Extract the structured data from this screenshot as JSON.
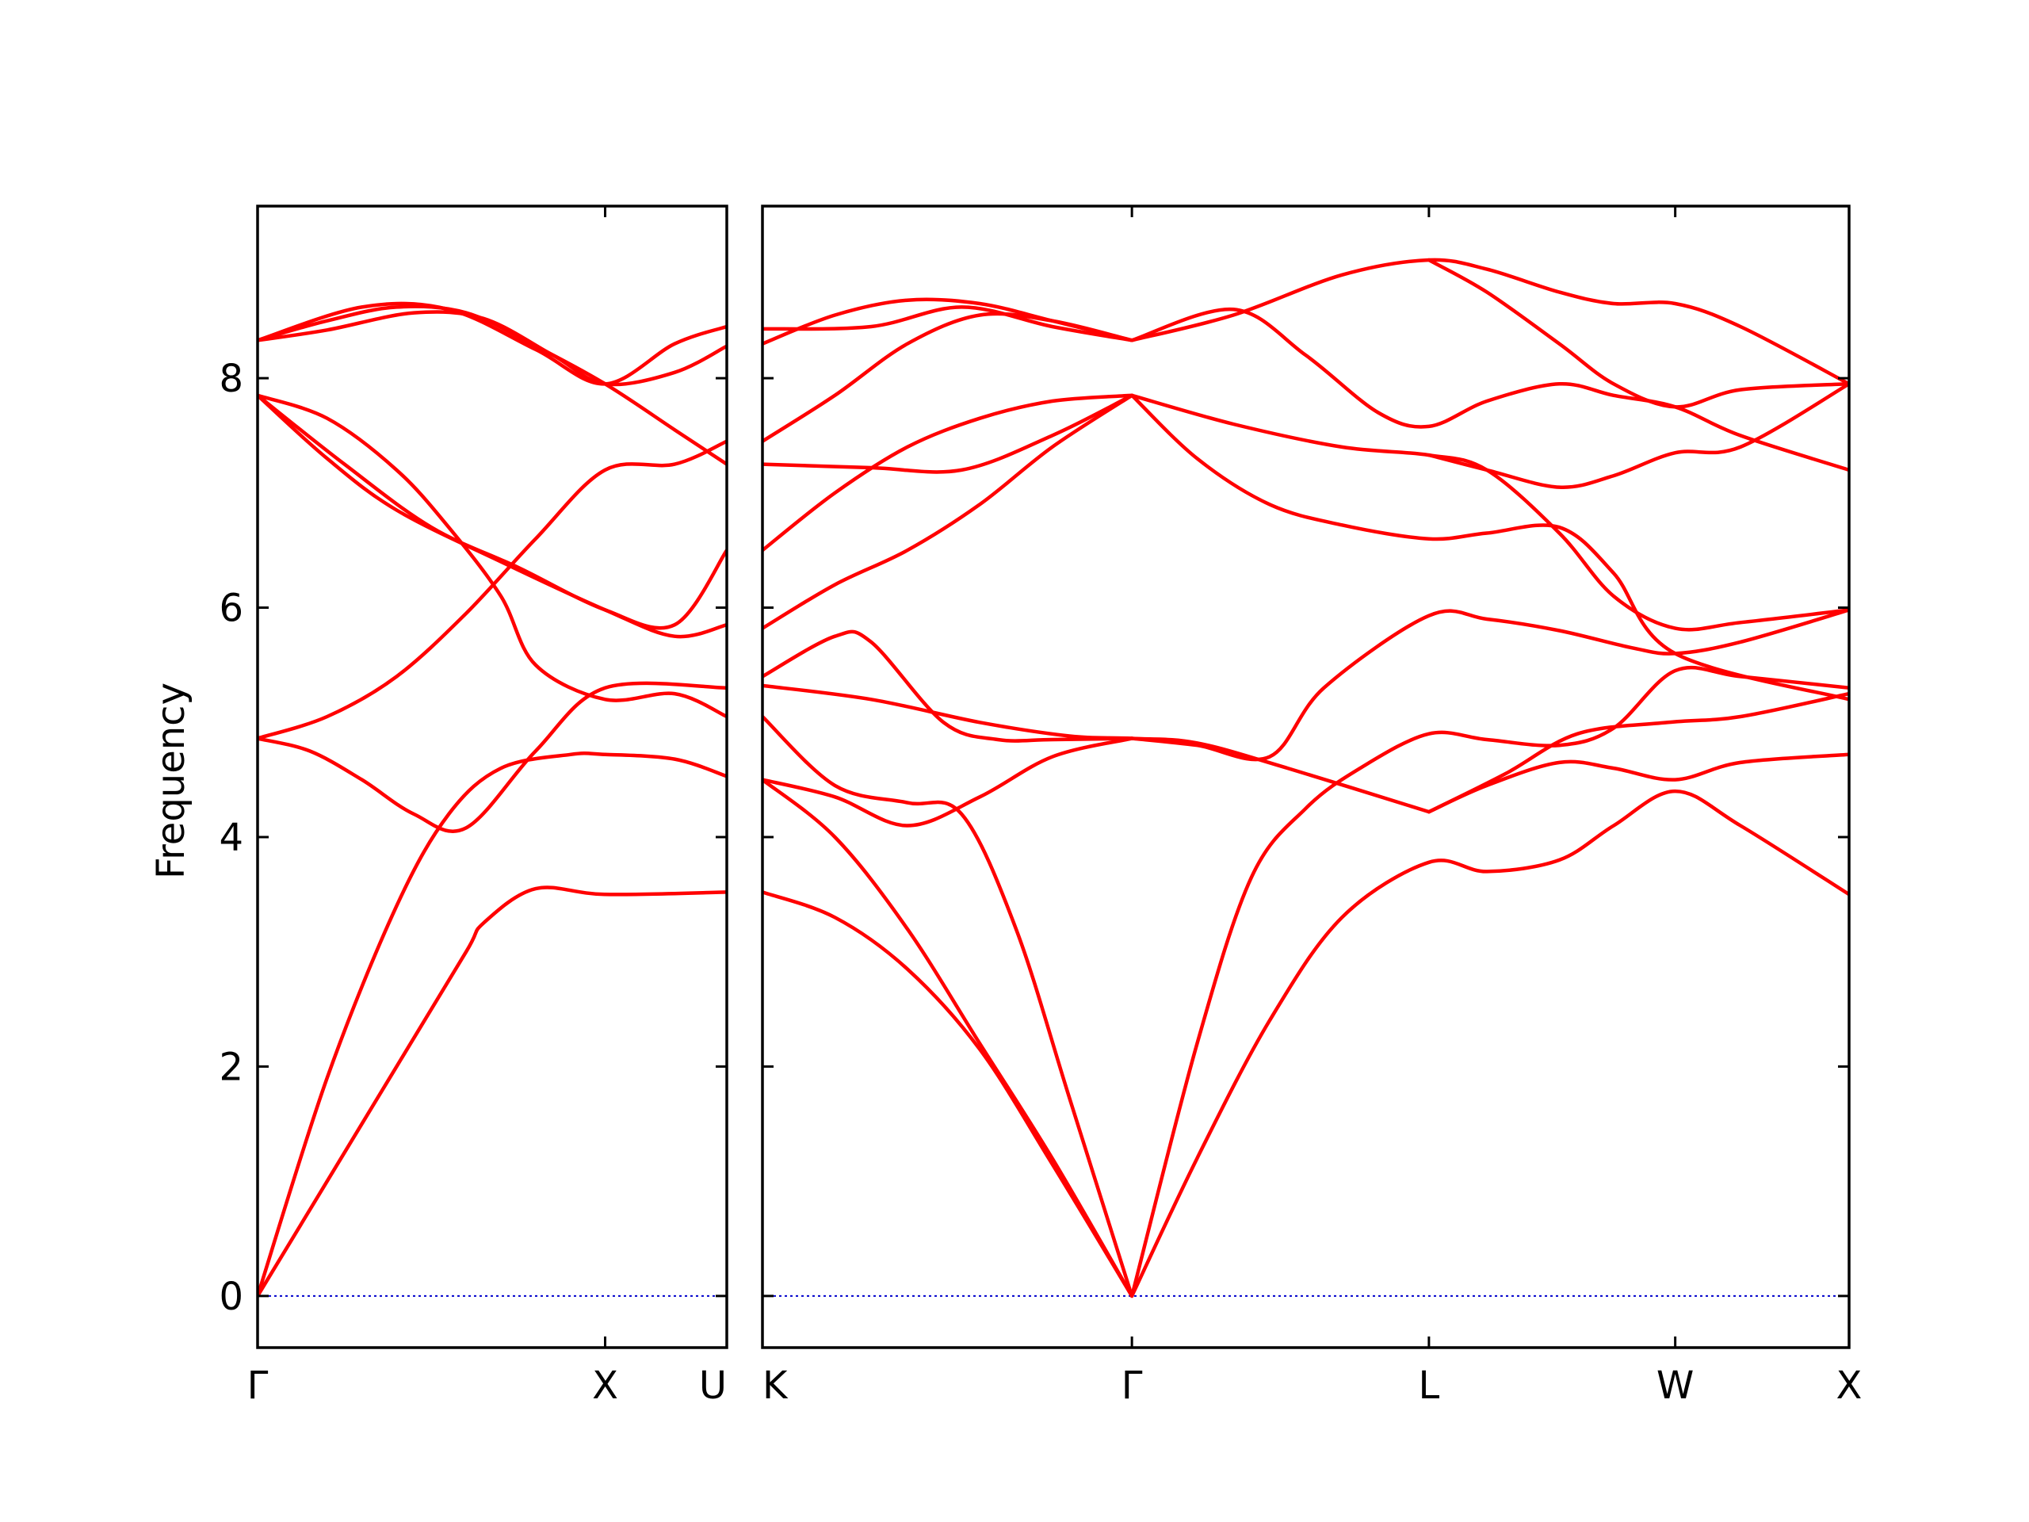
{
  "chart_data": {
    "type": "line",
    "ylabel": "Frequency",
    "ylim": [
      -0.45,
      9.5
    ],
    "yticks": [
      0,
      2,
      4,
      6,
      8
    ],
    "zero_line_color": "#0000cc",
    "band_color": "#ff0000",
    "panels": [
      {
        "name": "panel-left",
        "xlim": [
          0,
          1.35
        ],
        "xticks": [
          {
            "x": 0,
            "label": "Γ"
          },
          {
            "x": 1.0,
            "label": "X"
          },
          {
            "x": 1.35,
            "label": "U"
          }
        ],
        "bands": [
          {
            "x": [
              0,
              0.2,
              0.4,
              0.6,
              0.65,
              0.8,
              1.0,
              1.35
            ],
            "y": [
              0,
              1.0,
              2.0,
              3.0,
              3.25,
              3.55,
              3.5,
              3.52
            ]
          },
          {
            "x": [
              0,
              0.2,
              0.4,
              0.55,
              0.7,
              0.9,
              1.0,
              1.2,
              1.35
            ],
            "y": [
              0,
              1.9,
              3.4,
              4.2,
              4.6,
              4.72,
              4.72,
              4.68,
              4.53
            ]
          },
          {
            "x": [
              0,
              0.15,
              0.3,
              0.45,
              0.6,
              0.8,
              1.0,
              1.35
            ],
            "y": [
              4.86,
              4.75,
              4.5,
              4.2,
              4.08,
              4.75,
              5.3,
              5.3
            ]
          },
          {
            "x": [
              0,
              0.2,
              0.4,
              0.6,
              0.8,
              1.0,
              1.2,
              1.35
            ],
            "y": [
              4.86,
              5.05,
              5.4,
              5.95,
              6.6,
              7.2,
              7.25,
              7.45
            ]
          },
          {
            "x": [
              0,
              0.2,
              0.4,
              0.55,
              0.7,
              0.8,
              1.0,
              1.2,
              1.35
            ],
            "y": [
              7.85,
              7.65,
              7.2,
              6.7,
              6.1,
              5.5,
              5.2,
              5.25,
              5.05
            ]
          },
          {
            "x": [
              0,
              0.25,
              0.5,
              0.75,
              1.0,
              1.2,
              1.35
            ],
            "y": [
              7.85,
              7.25,
              6.7,
              6.35,
              5.98,
              5.85,
              6.5
            ]
          },
          {
            "x": [
              0,
              0.2,
              0.4,
              0.7,
              1.0,
              1.2,
              1.35
            ],
            "y": [
              7.85,
              7.3,
              6.85,
              6.4,
              5.98,
              5.75,
              5.85
            ]
          },
          {
            "x": [
              0,
              0.2,
              0.4,
              0.6,
              0.8,
              1.0,
              1.2,
              1.35
            ],
            "y": [
              8.33,
              8.5,
              8.62,
              8.57,
              8.28,
              7.95,
              7.55,
              7.25
            ]
          },
          {
            "x": [
              0,
              0.2,
              0.45,
              0.65,
              0.85,
              1.0,
              1.2,
              1.35
            ],
            "y": [
              8.33,
              8.42,
              8.57,
              8.52,
              8.2,
              7.95,
              8.05,
              8.28
            ]
          },
          {
            "x": [
              0,
              0.3,
              0.55,
              0.8,
              1.0,
              1.2,
              1.35
            ],
            "y": [
              8.33,
              8.62,
              8.6,
              8.25,
              7.95,
              8.3,
              8.45
            ]
          }
        ]
      },
      {
        "name": "panel-right",
        "xlim": [
          0,
          3.0
        ],
        "xticks": [
          {
            "x": 0,
            "label": "K"
          },
          {
            "x": 1.02,
            "label": "Γ"
          },
          {
            "x": 1.84,
            "label": "L"
          },
          {
            "x": 2.52,
            "label": "W"
          },
          {
            "x": 3.0,
            "label": "X"
          }
        ],
        "bands": [
          {
            "x": [
              0,
              0.2,
              0.4,
              0.6,
              0.8,
              1.02
            ],
            "y": [
              3.52,
              3.3,
              2.85,
              2.15,
              1.15,
              0
            ]
          },
          {
            "x": [
              0,
              0.2,
              0.4,
              0.6,
              0.8,
              1.02
            ],
            "y": [
              4.5,
              4.0,
              3.2,
              2.2,
              1.2,
              0
            ]
          },
          {
            "x": [
              0,
              0.2,
              0.4,
              0.55,
              0.7,
              0.85,
              1.02
            ],
            "y": [
              5.05,
              4.45,
              4.3,
              4.2,
              3.2,
              1.7,
              0
            ]
          },
          {
            "x": [
              1.02,
              1.2,
              1.35,
              1.5,
              1.65,
              1.84,
              2.0,
              2.2,
              2.35,
              2.52,
              2.7,
              3.0
            ],
            "y": [
              0,
              2.2,
              3.65,
              4.25,
              4.6,
              4.9,
              4.85,
              4.8,
              4.95,
              5.45,
              5.4,
              5.3
            ]
          },
          {
            "x": [
              1.02,
              1.2,
              1.4,
              1.6,
              1.84,
              2.0,
              2.2,
              2.35,
              2.52,
              2.7,
              3.0
            ],
            "y": [
              0,
              1.2,
              2.4,
              3.3,
              3.78,
              3.7,
              3.8,
              4.1,
              4.4,
              4.1,
              3.5
            ]
          },
          {
            "x": [
              0,
              0.2,
              0.4,
              0.6,
              0.8,
              1.02
            ],
            "y": [
              4.5,
              4.35,
              4.1,
              4.35,
              4.7,
              4.86
            ]
          },
          {
            "x": [
              0,
              0.2,
              0.3,
              0.5,
              0.65,
              0.8,
              1.02
            ],
            "y": [
              5.4,
              5.75,
              5.7,
              5.0,
              4.85,
              4.85,
              4.86
            ]
          },
          {
            "x": [
              0,
              0.3,
              0.6,
              0.85,
              1.02,
              1.2,
              1.45,
              1.84
            ],
            "y": [
              5.32,
              5.2,
              5.0,
              4.88,
              4.86,
              4.82,
              4.6,
              4.22
            ]
          },
          {
            "x": [
              1.02,
              1.2,
              1.4,
              1.55,
              1.84,
              2.0,
              2.2,
              2.4,
              2.52,
              2.7,
              3.0
            ],
            "y": [
              4.86,
              4.8,
              4.7,
              5.3,
              5.93,
              5.9,
              5.8,
              5.65,
              5.6,
              5.7,
              5.98
            ]
          },
          {
            "x": [
              1.84,
              2.0,
              2.2,
              2.35,
              2.52,
              2.7,
              3.0
            ],
            "y": [
              4.22,
              4.45,
              4.65,
              4.6,
              4.5,
              4.65,
              4.72
            ]
          },
          {
            "x": [
              1.84,
              2.05,
              2.25,
              2.5,
              2.7,
              3.0
            ],
            "y": [
              4.22,
              4.55,
              4.9,
              5.0,
              5.05,
              5.25
            ]
          },
          {
            "x": [
              0,
              0.2,
              0.4,
              0.6,
              0.8,
              1.02
            ],
            "y": [
              5.82,
              6.2,
              6.5,
              6.9,
              7.4,
              7.85
            ]
          },
          {
            "x": [
              0,
              0.2,
              0.4,
              0.6,
              0.8,
              1.02
            ],
            "y": [
              6.5,
              7.0,
              7.4,
              7.65,
              7.8,
              7.85
            ]
          },
          {
            "x": [
              0,
              0.3,
              0.55,
              0.8,
              1.02
            ],
            "y": [
              7.25,
              7.22,
              7.2,
              7.5,
              7.85
            ]
          },
          {
            "x": [
              1.02,
              1.2,
              1.4,
              1.6,
              1.84,
              2.0,
              2.2,
              2.35,
              2.52,
              3.0
            ],
            "y": [
              7.85,
              7.3,
              6.9,
              6.72,
              6.6,
              6.65,
              6.7,
              6.3,
              5.6,
              5.2
            ]
          },
          {
            "x": [
              1.02,
              1.3,
              1.6,
              1.84,
              2.0,
              2.2,
              2.35,
              2.52,
              2.7,
              3.0
            ],
            "y": [
              7.85,
              7.6,
              7.4,
              7.33,
              7.2,
              6.65,
              6.1,
              5.82,
              5.87,
              5.98
            ]
          },
          {
            "x": [
              1.84,
              2.0,
              2.2,
              2.35,
              2.52,
              2.7,
              3.0
            ],
            "y": [
              7.33,
              7.2,
              7.05,
              7.15,
              7.35,
              7.4,
              7.95
            ]
          },
          {
            "x": [
              0,
              0.2,
              0.4,
              0.6,
              0.8,
              1.02
            ],
            "y": [
              7.45,
              7.85,
              8.3,
              8.55,
              8.5,
              8.33
            ]
          },
          {
            "x": [
              0,
              0.2,
              0.4,
              0.6,
              0.8,
              1.02
            ],
            "y": [
              8.3,
              8.55,
              8.68,
              8.65,
              8.5,
              8.33
            ]
          },
          {
            "x": [
              0,
              0.3,
              0.55,
              0.8,
              1.02
            ],
            "y": [
              8.43,
              8.45,
              8.62,
              8.45,
              8.33
            ]
          },
          {
            "x": [
              1.02,
              1.3,
              1.6,
              1.84,
              2.0,
              2.2,
              2.35,
              2.52,
              2.7,
              3.0
            ],
            "y": [
              8.33,
              8.55,
              8.9,
              9.03,
              8.95,
              8.75,
              8.65,
              8.65,
              8.45,
              7.95
            ]
          },
          {
            "x": [
              1.02,
              1.3,
              1.5,
              1.7,
              1.84,
              2.0,
              2.2,
              2.35,
              2.52,
              2.7,
              3.0
            ],
            "y": [
              8.33,
              8.6,
              8.2,
              7.7,
              7.58,
              7.8,
              7.95,
              7.85,
              7.75,
              7.5,
              7.2
            ]
          },
          {
            "x": [
              1.84,
              2.0,
              2.2,
              2.35,
              2.52,
              2.7,
              3.0
            ],
            "y": [
              9.03,
              8.75,
              8.3,
              7.95,
              7.75,
              7.9,
              7.95
            ]
          }
        ]
      }
    ]
  }
}
